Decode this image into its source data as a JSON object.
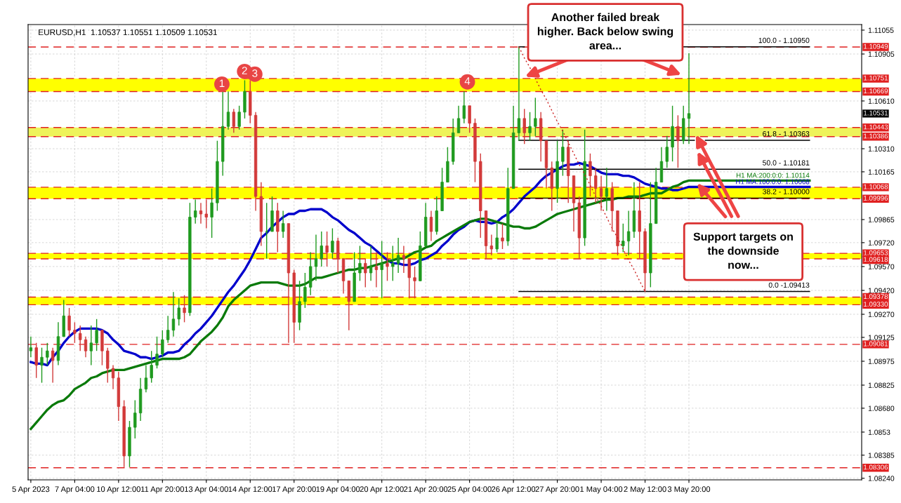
{
  "chart_data": {
    "type": "candlestick",
    "title": "EURUSD,H1  1.10537 1.10551 1.10509 1.10531",
    "categories": [
      "5 Apr 2023",
      null,
      null,
      null,
      null,
      null,
      null,
      null,
      "7 Apr 04:00",
      null,
      null,
      null,
      null,
      null,
      null,
      null,
      "10 Apr 12:00",
      null,
      null,
      null,
      null,
      null,
      null,
      null,
      "11 Apr 20:00",
      null,
      null,
      null,
      null,
      null,
      null,
      null,
      "13 Apr 04:00",
      null,
      null,
      null,
      null,
      null,
      null,
      null,
      "14 Apr 12:00",
      null,
      null,
      null,
      null,
      null,
      null,
      null,
      "17 Apr 20:00",
      null,
      null,
      null,
      null,
      null,
      null,
      null,
      "19 Apr 04:00",
      null,
      null,
      null,
      null,
      null,
      null,
      null,
      "20 Apr 12:00",
      null,
      null,
      null,
      null,
      null,
      null,
      null,
      "21 Apr 20:00",
      null,
      null,
      null,
      null,
      null,
      null,
      null,
      "25 Apr 04:00",
      null,
      null,
      null,
      null,
      null,
      null,
      null,
      "26 Apr 12:00",
      null,
      null,
      null,
      null,
      null,
      null,
      null,
      "27 Apr 20:00",
      null,
      null,
      null,
      null,
      null,
      null,
      null,
      "1 May 04:00",
      null,
      null,
      null,
      null,
      null,
      null,
      null,
      "2 May 12:00",
      null,
      null,
      null,
      null,
      null,
      null,
      null,
      "3 May 20:00",
      null,
      null,
      null,
      null,
      null,
      null,
      null,
      null,
      null,
      null,
      null,
      null,
      null,
      null,
      null,
      null,
      null,
      null,
      null,
      null,
      null,
      null,
      null,
      null,
      null,
      null,
      null,
      null,
      null,
      null,
      null
    ],
    "ohlc": [
      [
        1.0904,
        1.0913,
        1.09,
        1.0906
      ],
      [
        1.0906,
        1.0909,
        1.0887,
        1.0895
      ],
      [
        1.0895,
        1.0906,
        1.0884,
        1.09
      ],
      [
        1.09,
        1.0909,
        1.0895,
        1.0904
      ],
      [
        1.0904,
        1.0906,
        1.0884,
        1.0898
      ],
      [
        1.0898,
        1.0922,
        1.0895,
        1.0913
      ],
      [
        1.0913,
        1.0936,
        1.0913,
        1.0926
      ],
      [
        1.0926,
        1.0931,
        1.0913,
        1.0917
      ],
      [
        1.0917,
        1.0922,
        1.0909,
        1.0915
      ],
      [
        1.0915,
        1.092,
        1.0904,
        1.0911
      ],
      [
        1.0911,
        1.0913,
        1.09,
        1.0904
      ],
      [
        1.0904,
        1.092,
        1.0895,
        1.0909
      ],
      [
        1.0909,
        1.0924,
        1.0904,
        1.0917
      ],
      [
        1.0917,
        1.0917,
        1.0895,
        1.0904
      ],
      [
        1.0904,
        1.0906,
        1.0884,
        1.0893
      ],
      [
        1.0893,
        1.0895,
        1.088,
        1.0887
      ],
      [
        1.0887,
        1.0891,
        1.086,
        1.0869
      ],
      [
        1.0869,
        1.0873,
        1.0831,
        1.0838
      ],
      [
        1.0838,
        1.086,
        1.0831,
        1.0856
      ],
      [
        1.0856,
        1.0873,
        1.0849,
        1.0865
      ],
      [
        1.0865,
        1.0887,
        1.086,
        1.088
      ],
      [
        1.088,
        1.0895,
        1.0878,
        1.0887
      ],
      [
        1.0887,
        1.0904,
        1.0884,
        1.0895
      ],
      [
        1.0895,
        1.0913,
        1.0893,
        1.0902
      ],
      [
        1.0902,
        1.0917,
        1.09,
        1.0911
      ],
      [
        1.0911,
        1.0926,
        1.0909,
        1.0917
      ],
      [
        1.0917,
        1.0941,
        1.0913,
        1.0924
      ],
      [
        1.0924,
        1.0937,
        1.092,
        1.0931
      ],
      [
        1.0931,
        1.0939,
        1.0922,
        1.0928
      ],
      [
        1.0928,
        1.0997,
        1.0926,
        1.0988
      ],
      [
        1.0988,
        1.0999,
        1.0984,
        1.0992
      ],
      [
        1.0992,
        1.0997,
        1.0984,
        1.099
      ],
      [
        1.099,
        1.0999,
        1.0981,
        1.0988
      ],
      [
        1.0988,
        1.1006,
        1.0975,
        1.0997
      ],
      [
        1.0997,
        1.1036,
        1.0992,
        1.1023
      ],
      [
        1.1023,
        1.1067,
        1.1014,
        1.1045
      ],
      [
        1.1045,
        1.1067,
        1.1043,
        1.1054
      ],
      [
        1.1054,
        1.1056,
        1.1041,
        1.1045
      ],
      [
        1.1045,
        1.1058,
        1.1043,
        1.1054
      ],
      [
        1.1054,
        1.1074,
        1.105,
        1.1067
      ],
      [
        1.1067,
        1.1074,
        1.1047,
        1.1052
      ],
      [
        1.1052,
        1.1054,
        1.0992,
        1.1001
      ],
      [
        1.1001,
        1.101,
        1.097,
        1.0979
      ],
      [
        1.0979,
        1.0997,
        1.0962,
        1.0979
      ],
      [
        1.0979,
        1.1001,
        1.0979,
        1.0992
      ],
      [
        1.0992,
        1.0997,
        1.0966,
        1.0979
      ],
      [
        1.0979,
        1.0992,
        1.0975,
        1.0984
      ],
      [
        1.0984,
        1.0984,
        1.0909,
        1.0953
      ],
      [
        1.0953,
        1.0955,
        1.0909,
        1.0922
      ],
      [
        1.0922,
        1.0948,
        1.0917,
        1.0935
      ],
      [
        1.0935,
        1.0953,
        1.0931,
        1.0944
      ],
      [
        1.0944,
        1.0966,
        1.0939,
        1.0957
      ],
      [
        1.0957,
        1.0977,
        1.0948,
        1.0962
      ],
      [
        1.0962,
        1.0979,
        1.0957,
        1.097
      ],
      [
        1.097,
        1.0979,
        1.0957,
        1.0966
      ],
      [
        1.0966,
        1.0981,
        1.0962,
        1.0973
      ],
      [
        1.0973,
        1.0975,
        1.0953,
        1.0962
      ],
      [
        1.0962,
        1.0962,
        1.094,
        1.0948
      ],
      [
        1.0948,
        1.0948,
        1.0917,
        1.0935
      ],
      [
        1.0935,
        1.0966,
        1.0935,
        1.0953
      ],
      [
        1.0953,
        1.097,
        1.0948,
        1.0959
      ],
      [
        1.0959,
        1.0962,
        1.0944,
        1.0953
      ],
      [
        1.0953,
        1.097,
        1.0948,
        1.0957
      ],
      [
        1.0957,
        1.0966,
        1.0944,
        1.0955
      ],
      [
        1.0955,
        1.0973,
        1.0937,
        1.0959
      ],
      [
        1.0959,
        1.0966,
        1.0948,
        1.0957
      ],
      [
        1.0957,
        1.097,
        1.0948,
        1.0959
      ],
      [
        1.0959,
        1.0975,
        1.0953,
        1.0964
      ],
      [
        1.0964,
        1.097,
        1.0953,
        1.0962
      ],
      [
        1.0962,
        1.0962,
        1.0937,
        1.095
      ],
      [
        1.095,
        1.0957,
        1.0937,
        1.0948
      ],
      [
        1.0948,
        1.0979,
        1.0948,
        1.097
      ],
      [
        1.097,
        1.0997,
        1.097,
        1.0988
      ],
      [
        1.0988,
        1.0992,
        1.0973,
        1.0979
      ],
      [
        1.0979,
        1.1001,
        1.0977,
        1.0992
      ],
      [
        1.0992,
        1.1019,
        1.0992,
        1.101
      ],
      [
        1.101,
        1.1032,
        1.101,
        1.1023
      ],
      [
        1.1023,
        1.105,
        1.1021,
        1.1041
      ],
      [
        1.1041,
        1.1058,
        1.1041,
        1.105
      ],
      [
        1.105,
        1.1067,
        1.1047,
        1.1058
      ],
      [
        1.1058,
        1.1058,
        1.1041,
        1.1047
      ],
      [
        1.1047,
        1.105,
        1.101,
        1.1023
      ],
      [
        1.1023,
        1.1028,
        1.0975,
        1.0992
      ],
      [
        1.0992,
        1.0992,
        1.0962,
        1.097
      ],
      [
        1.097,
        1.0977,
        1.0964,
        1.0968
      ],
      [
        1.0968,
        1.0984,
        1.0966,
        1.0975
      ],
      [
        1.0975,
        1.0984,
        1.0968,
        1.0973
      ],
      [
        1.0973,
        1.1019,
        1.097,
        1.1006
      ],
      [
        1.1006,
        1.1058,
        1.1006,
        1.1041
      ],
      [
        1.1041,
        1.1095,
        1.1036,
        1.105
      ],
      [
        1.105,
        1.1056,
        1.1034,
        1.1041
      ],
      [
        1.1041,
        1.1054,
        1.1036,
        1.1045
      ],
      [
        1.1045,
        1.1063,
        1.1039,
        1.105
      ],
      [
        1.105,
        1.1054,
        1.1023,
        1.1036
      ],
      [
        1.1036,
        1.1036,
        1.1006,
        1.1019
      ],
      [
        1.1019,
        1.1023,
        1.0992,
        1.1006
      ],
      [
        1.1006,
        1.1036,
        1.0997,
        1.1023
      ],
      [
        1.1023,
        1.1043,
        1.1014,
        1.1032
      ],
      [
        1.1032,
        1.1036,
        1.0997,
        1.1014
      ],
      [
        1.1014,
        1.1014,
        1.0979,
        1.0997
      ],
      [
        1.0997,
        1.1001,
        1.0962,
        1.0975
      ],
      [
        1.0975,
        1.1043,
        1.097,
        1.1023
      ],
      [
        1.1023,
        1.1028,
        1.1001,
        1.1014
      ],
      [
        1.1014,
        1.1019,
        1.0997,
        1.1006
      ],
      [
        1.1006,
        1.1014,
        1.0992,
        1.1001
      ],
      [
        1.1001,
        1.1019,
        1.0992,
        1.1006
      ],
      [
        1.1006,
        1.101,
        1.0979,
        1.0992
      ],
      [
        1.0992,
        1.0992,
        1.0964,
        1.097
      ],
      [
        1.097,
        1.0984,
        1.0966,
        1.0973
      ],
      [
        1.0973,
        1.0992,
        1.0964,
        1.0979
      ],
      [
        1.0979,
        1.101,
        1.0975,
        1.0992
      ],
      [
        1.0992,
        1.101,
        1.0962,
        1.0979
      ],
      [
        1.0979,
        1.0981,
        1.0941,
        1.0953
      ],
      [
        1.0953,
        1.101,
        1.0944,
        1.0984
      ],
      [
        1.0984,
        1.1019,
        1.0984,
        1.101
      ],
      [
        1.101,
        1.1032,
        1.101,
        1.1023
      ],
      [
        1.1023,
        1.1039,
        1.1019,
        1.1032
      ],
      [
        1.1032,
        1.1058,
        1.1023,
        1.1045
      ],
      [
        1.1045,
        1.1052,
        1.1019,
        1.1036
      ],
      [
        1.1036,
        1.1058,
        1.1034,
        1.105
      ],
      [
        1.105,
        1.1091,
        1.1034,
        1.10531
      ],
      null,
      null,
      null,
      null,
      null,
      null,
      null,
      null,
      null,
      null,
      null,
      null,
      null,
      null,
      null,
      null,
      null,
      null,
      null,
      null,
      null,
      null,
      null,
      null,
      null,
      null,
      null,
      null,
      null,
      null,
      null
    ],
    "series": [
      {
        "type": "line",
        "name": "H1 MA:100:0:0: 1.10068",
        "color": "#0000cc",
        "values": [
          1.0897,
          1.0896,
          1.0896,
          1.0895,
          1.09,
          1.0904,
          1.0909,
          1.0913,
          1.0916,
          1.0918,
          1.0918,
          1.0918,
          1.0918,
          1.0917,
          1.0915,
          1.0911,
          1.0908,
          1.0904,
          1.0903,
          1.0902,
          1.09,
          1.09,
          1.0899,
          1.09,
          1.0901,
          1.0903,
          1.0903,
          1.0904,
          1.0908,
          1.0911,
          1.0915,
          1.0918,
          1.0922,
          1.0926,
          1.0931,
          1.0936,
          1.0941,
          1.0945,
          1.095,
          1.0955,
          1.0961,
          1.0968,
          1.0975,
          1.0978,
          1.0982,
          1.0985,
          1.0988,
          1.099,
          1.099,
          1.0992,
          1.0992,
          1.0993,
          1.0993,
          1.0993,
          1.0991,
          1.0988,
          1.0986,
          1.0983,
          1.098,
          1.0978,
          1.0975,
          1.0972,
          1.097,
          1.0967,
          1.0964,
          1.0961,
          1.0959,
          1.0959,
          1.0958,
          1.0958,
          1.0959,
          1.0961,
          1.0962,
          1.0964,
          1.0966,
          1.097,
          1.0973,
          1.0977,
          1.098,
          1.0982,
          1.0985,
          1.0986,
          1.0985,
          1.0985,
          1.0984,
          1.0985,
          1.0988,
          1.099,
          1.0993,
          1.0997,
          1.1001,
          1.1004,
          1.1007,
          1.1011,
          1.1014,
          1.1016,
          1.1018,
          1.102,
          1.1021,
          1.1021,
          1.1022,
          1.1021,
          1.102,
          1.1018,
          1.1016,
          1.1015,
          1.1015,
          1.1015,
          1.1014,
          1.1014,
          1.1013,
          1.1011,
          1.1009,
          1.1008,
          1.1007,
          1.1006,
          1.1006,
          1.1005,
          1.1005,
          1.1006,
          1.1007,
          1.1007,
          1.1007,
          1.1007,
          1.1007,
          1.1007,
          1.1007,
          1.1007,
          1.1007,
          1.1007,
          1.1007,
          1.1007,
          1.1007,
          1.1007,
          1.1007,
          1.1007,
          1.1007,
          1.1007,
          1.1007,
          1.1007,
          1.1007,
          1.1007,
          1.1007,
          null,
          null,
          null,
          null,
          null,
          null,
          null,
          null,
          null
        ]
      },
      {
        "type": "line",
        "name": "H1 MA:200:0:0: 1.10114",
        "color": "#0a7a0a",
        "values": [
          1.0855,
          1.0859,
          1.0863,
          1.0867,
          1.087,
          1.0872,
          1.0873,
          1.0876,
          1.088,
          1.0882,
          1.0884,
          1.0887,
          1.0888,
          1.089,
          1.0891,
          1.0892,
          1.0892,
          1.0892,
          1.0893,
          1.0894,
          1.0895,
          1.0896,
          1.0897,
          1.0898,
          1.0899,
          1.0899,
          1.0899,
          1.0899,
          1.09,
          1.0902,
          1.0906,
          1.091,
          1.0913,
          1.0916,
          1.092,
          1.0925,
          1.0932,
          1.0936,
          1.0939,
          1.0942,
          1.0945,
          1.0946,
          1.0947,
          1.0947,
          1.0947,
          1.0947,
          1.0946,
          1.0945,
          1.0945,
          1.0945,
          1.0946,
          1.0948,
          1.095,
          1.095,
          1.0951,
          1.0952,
          1.0953,
          1.0954,
          1.0955,
          1.0955,
          1.0956,
          1.0956,
          1.0957,
          1.0958,
          1.0959,
          1.096,
          1.0961,
          1.0962,
          1.0962,
          1.0964,
          1.0966,
          1.0967,
          1.0969,
          1.097,
          1.0973,
          1.0975,
          1.0977,
          1.0979,
          1.0981,
          1.0983,
          1.0985,
          1.0986,
          1.0987,
          1.0987,
          1.0986,
          1.0985,
          1.0984,
          1.0983,
          1.0982,
          1.0982,
          1.0981,
          1.0981,
          1.0982,
          1.0984,
          1.0986,
          1.0988,
          1.099,
          1.0991,
          1.0992,
          1.0993,
          1.0994,
          1.0995,
          1.0996,
          1.0997,
          1.0998,
          1.0999,
          1.0999,
          1.1,
          1.1,
          1.1001,
          1.1001,
          1.1001,
          1.1002,
          1.1003,
          1.1003,
          1.1003,
          1.1005,
          1.1007,
          1.1008,
          1.101,
          1.1011,
          1.1011,
          1.1011,
          1.1011,
          1.1011,
          1.1011,
          1.1011,
          1.1011,
          1.1011,
          1.1011,
          1.1011,
          1.1011,
          1.1011,
          1.1011,
          1.1011,
          1.1011,
          1.1011,
          1.1011,
          1.1011,
          1.1011,
          1.1011,
          1.1011,
          1.1011,
          null,
          null,
          null,
          null,
          null,
          null,
          null,
          null,
          null
        ]
      },
      {
        "type": "line",
        "name": "100.0 - 1.10950",
        "color": "#000000",
        "line_style": "solid",
        "values": [
          null,
          null,
          null,
          null,
          null,
          null,
          null,
          null,
          null,
          null,
          null,
          null,
          null,
          null,
          null,
          null,
          null,
          null,
          null,
          null,
          null,
          null,
          null,
          null,
          null,
          null,
          null,
          null,
          null,
          null,
          null,
          null,
          null,
          null,
          null,
          null,
          null,
          null,
          null,
          null,
          null,
          null,
          null,
          null,
          null,
          null,
          null,
          null,
          null,
          null,
          null,
          null,
          null,
          null,
          null,
          null,
          null,
          null,
          null,
          null,
          null,
          null,
          null,
          null,
          null,
          null,
          null,
          null,
          null,
          null,
          null,
          null,
          null,
          null,
          null,
          null,
          null,
          null,
          null,
          null,
          null,
          null,
          null,
          null,
          null,
          null,
          null,
          null,
          null,
          1.1095,
          1.1095,
          null,
          null,
          null,
          null,
          null,
          null,
          null,
          null,
          null,
          null,
          null,
          null,
          null,
          null,
          null,
          null,
          null,
          null,
          null,
          null,
          null,
          null,
          null,
          null,
          null,
          null,
          null,
          null,
          1.1095,
          1.1095,
          1.1095,
          1.1095,
          1.1095,
          1.1095,
          1.1095,
          1.1095,
          1.1095,
          1.1095,
          1.1095,
          1.1095,
          1.1095,
          1.1095,
          1.1095,
          1.1095,
          1.1095,
          1.1095,
          1.1095,
          1.1095,
          1.1095,
          1.1095,
          1.1095,
          1.1095,
          null,
          null,
          null,
          null,
          null,
          null,
          null,
          null,
          null
        ]
      },
      {
        "type": "line",
        "name": "61.8 - 1.10363",
        "color": "#000000",
        "line_style": "solid",
        "values": [
          null,
          null,
          null,
          null,
          null,
          null,
          null,
          null,
          null,
          null,
          null,
          null,
          null,
          null,
          null,
          null,
          null,
          null,
          null,
          null,
          null,
          null,
          null,
          null,
          null,
          null,
          null,
          null,
          null,
          null,
          null,
          null,
          null,
          null,
          null,
          null,
          null,
          null,
          null,
          null,
          null,
          null,
          null,
          null,
          null,
          null,
          null,
          null,
          null,
          null,
          null,
          null,
          null,
          null,
          null,
          null,
          null,
          null,
          null,
          null,
          null,
          null,
          null,
          null,
          null,
          null,
          null,
          null,
          null,
          null,
          null,
          null,
          null,
          null,
          null,
          null,
          null,
          null,
          null,
          null,
          null,
          null,
          null,
          null,
          null,
          null,
          null,
          null,
          null,
          1.10363,
          1.10363,
          1.10363,
          1.10363,
          1.10363,
          1.10363,
          1.10363,
          1.10363,
          1.10363,
          1.10363,
          1.10363,
          1.10363,
          1.10363,
          1.10363,
          1.10363,
          1.10363,
          1.10363,
          1.10363,
          1.10363,
          1.10363,
          1.10363,
          1.10363,
          1.10363,
          1.10363,
          1.10363,
          1.10363,
          1.10363,
          1.10363,
          1.10363,
          1.10363,
          1.10363,
          1.10363,
          1.10363,
          null,
          1.10363,
          1.10363,
          1.10363,
          1.10363,
          1.10363,
          1.10363,
          1.10363,
          1.10363,
          1.10363,
          1.10363,
          1.10363,
          1.10363,
          1.10363,
          1.10363,
          1.10363,
          1.10363,
          1.10363,
          1.10363,
          1.10363,
          1.10363,
          null,
          null,
          null,
          null,
          null,
          null,
          null,
          null,
          null
        ]
      },
      {
        "type": "line",
        "name": "50.0 - 1.10181",
        "color": "#000000",
        "line_style": "solid",
        "values": [
          null,
          null,
          null,
          null,
          null,
          null,
          null,
          null,
          null,
          null,
          null,
          null,
          null,
          null,
          null,
          null,
          null,
          null,
          null,
          null,
          null,
          null,
          null,
          null,
          null,
          null,
          null,
          null,
          null,
          null,
          null,
          null,
          null,
          null,
          null,
          null,
          null,
          null,
          null,
          null,
          null,
          null,
          null,
          null,
          null,
          null,
          null,
          null,
          null,
          null,
          null,
          null,
          null,
          null,
          null,
          null,
          null,
          null,
          null,
          null,
          null,
          null,
          null,
          null,
          null,
          null,
          null,
          null,
          null,
          null,
          null,
          null,
          null,
          null,
          null,
          null,
          null,
          null,
          null,
          null,
          null,
          null,
          null,
          null,
          null,
          null,
          null,
          null,
          null,
          1.10181,
          1.10181,
          1.10181,
          1.10181,
          1.10181,
          1.10181,
          1.10181,
          1.10181,
          1.10181,
          1.10181,
          1.10181,
          1.10181,
          1.10181,
          1.10181,
          1.10181,
          1.10181,
          1.10181,
          1.10181,
          1.10181,
          1.10181,
          1.10181,
          1.10181,
          1.10181,
          1.10181,
          1.10181,
          1.10181,
          1.10181,
          1.10181,
          1.10181,
          1.10181,
          1.10181,
          1.10181,
          1.10181,
          1.10181,
          1.10181,
          1.10181,
          1.10181,
          1.10181,
          1.10181,
          1.10181,
          1.10181,
          1.10181,
          1.10181,
          1.10181,
          1.10181,
          1.10181,
          1.10181,
          1.10181,
          1.10181,
          1.10181,
          1.10181,
          1.10181,
          1.10181,
          1.10181,
          null,
          null,
          null,
          null,
          null,
          null,
          null,
          null,
          null
        ]
      },
      {
        "type": "line",
        "name": "38.2 - 1.10000",
        "color": "#000000",
        "line_style": "solid",
        "values": [
          null,
          null,
          null,
          null,
          null,
          null,
          null,
          null,
          null,
          null,
          null,
          null,
          null,
          null,
          null,
          null,
          null,
          null,
          null,
          null,
          null,
          null,
          null,
          null,
          null,
          null,
          null,
          null,
          null,
          null,
          null,
          null,
          null,
          null,
          null,
          null,
          null,
          null,
          null,
          null,
          null,
          null,
          null,
          null,
          null,
          null,
          null,
          null,
          null,
          null,
          null,
          null,
          null,
          null,
          null,
          null,
          null,
          null,
          null,
          null,
          null,
          null,
          null,
          null,
          null,
          null,
          null,
          null,
          null,
          null,
          null,
          null,
          null,
          null,
          null,
          null,
          null,
          null,
          null,
          null,
          null,
          null,
          null,
          null,
          null,
          null,
          null,
          null,
          null,
          1.1,
          1.1,
          1.1,
          1.1,
          1.1,
          1.1,
          1.1,
          1.1,
          1.1,
          1.1,
          1.1,
          1.1,
          1.1,
          1.1,
          1.1,
          1.1,
          1.1,
          1.1,
          1.1,
          1.1,
          1.1,
          1.1,
          1.1,
          1.1,
          1.1,
          1.1,
          1.1,
          1.1,
          1.1,
          1.1,
          1.1,
          1.1,
          1.1,
          1.1,
          1.1,
          1.1,
          1.1,
          1.1,
          1.1,
          1.1,
          1.1,
          1.1,
          1.1,
          1.1,
          1.1,
          1.1,
          1.1,
          1.1,
          1.1,
          1.1,
          1.1,
          1.1,
          1.1,
          1.1,
          null,
          null,
          null,
          null,
          null,
          null,
          null,
          null,
          null
        ]
      },
      {
        "type": "line",
        "name": "0.0 -1.09413",
        "color": "#000000",
        "line_style": "solid",
        "values": [
          null,
          null,
          null,
          null,
          null,
          null,
          null,
          null,
          null,
          null,
          null,
          null,
          null,
          null,
          null,
          null,
          null,
          null,
          null,
          null,
          null,
          null,
          null,
          null,
          null,
          null,
          null,
          null,
          null,
          null,
          null,
          null,
          null,
          null,
          null,
          null,
          null,
          null,
          null,
          null,
          null,
          null,
          null,
          null,
          null,
          null,
          null,
          null,
          null,
          null,
          null,
          null,
          null,
          null,
          null,
          null,
          null,
          null,
          null,
          null,
          null,
          null,
          null,
          null,
          null,
          null,
          null,
          null,
          null,
          null,
          null,
          null,
          null,
          null,
          null,
          null,
          null,
          null,
          null,
          null,
          null,
          null,
          null,
          null,
          null,
          null,
          null,
          null,
          null,
          1.09413,
          1.09413,
          1.09413,
          1.09413,
          1.09413,
          1.09413,
          1.09413,
          1.09413,
          1.09413,
          1.09413,
          1.09413,
          1.09413,
          1.09413,
          1.09413,
          1.09413,
          1.09413,
          1.09413,
          1.09413,
          1.09413,
          1.09413,
          1.09413,
          1.09413,
          1.09413,
          1.09413,
          1.09413,
          1.09413,
          1.09413,
          1.09413,
          1.09413,
          1.09413,
          1.09413,
          1.09413,
          1.09413,
          1.09413,
          1.09413,
          1.09413,
          1.09413,
          1.09413,
          1.09413,
          1.09413,
          1.09413,
          1.09413,
          1.09413,
          1.09413,
          1.09413,
          1.09413,
          1.09413,
          1.09413,
          1.09413,
          1.09413,
          1.09413,
          1.09413,
          1.09413,
          1.09413,
          null,
          null,
          null,
          null,
          null,
          null,
          null,
          null,
          null
        ]
      },
      {
        "type": "line",
        "color": "#cc2222",
        "line_style": "dotted",
        "values": [
          null,
          null,
          null,
          null,
          null,
          null,
          null,
          null,
          null,
          null,
          null,
          null,
          null,
          null,
          null,
          null,
          null,
          null,
          null,
          null,
          null,
          null,
          null,
          null,
          null,
          null,
          null,
          null,
          null,
          null,
          null,
          null,
          null,
          null,
          null,
          null,
          null,
          null,
          null,
          null,
          null,
          null,
          null,
          null,
          null,
          null,
          null,
          null,
          null,
          null,
          null,
          null,
          null,
          null,
          null,
          null,
          null,
          null,
          null,
          null,
          null,
          null,
          null,
          null,
          null,
          null,
          null,
          null,
          null,
          null,
          null,
          null,
          null,
          null,
          null,
          null,
          null,
          null,
          null,
          null,
          null,
          null,
          null,
          null,
          null,
          null,
          null,
          null,
          null,
          1.1095,
          1.1088,
          1.1082,
          1.1075,
          1.1068,
          1.1062,
          1.1055,
          1.1048,
          1.1042,
          1.1035,
          1.1028,
          1.1021,
          1.1015,
          1.1008,
          1.1001,
          1.0995,
          1.0988,
          1.0981,
          1.0975,
          1.0968,
          1.0961,
          1.0955,
          1.0948,
          1.09413,
          null,
          null,
          null,
          null,
          null,
          null,
          null,
          null,
          null,
          null,
          null,
          null,
          null,
          null,
          null,
          null,
          null,
          null,
          null,
          null,
          null,
          null,
          null,
          null,
          null,
          null,
          null,
          null,
          null,
          null,
          null,
          null,
          null,
          null,
          null,
          null,
          null,
          null,
          null
        ]
      }
    ],
    "ylim": [
      1.0823,
      1.1109
    ],
    "yticks": [
      1.11055,
      1.10905,
      {
        "value": 1.1061,
        "label": "1.10610"
      },
      {
        "value": 1.1031,
        "label": "1.10310"
      },
      1.10165,
      1.09865,
      {
        "value": 1.0972,
        "label": "1.09720"
      },
      {
        "value": 1.0957,
        "label": "1.09570"
      },
      {
        "value": 1.0942,
        "label": "1.09420"
      },
      {
        "value": 1.0927,
        "label": "1.09270"
      },
      1.09125,
      1.08975,
      1.08825,
      {
        "value": 1.0868,
        "label": "1.08680"
      },
      1.0853,
      1.08385,
      {
        "value": 1.0824,
        "label": "1.08240"
      }
    ],
    "bands": [
      {
        "axis": "y",
        "from": 1.10669,
        "to": 1.10751,
        "color": "#ffff00"
      },
      {
        "axis": "y",
        "from": 1.10386,
        "to": 1.10443,
        "color": "#eef35a"
      },
      {
        "axis": "y",
        "from": 1.09996,
        "to": 1.10068,
        "color": "#ffff00"
      },
      {
        "axis": "y",
        "from": 1.09618,
        "to": 1.09653,
        "color": "#ffff00"
      },
      {
        "axis": "y",
        "from": 1.0933,
        "to": 1.09378,
        "color": "#ffff00"
      }
    ],
    "ref_lines": [
      {
        "axis": "y",
        "value": 1.10949,
        "label": "1.10949",
        "color": "#e02020",
        "line_style": "dashed"
      },
      {
        "axis": "y",
        "value": 1.10751,
        "label": "1.10751",
        "color": "#e02020",
        "line_style": "dashed"
      },
      {
        "axis": "y",
        "value": 1.10669,
        "label": "1.10669",
        "color": "#e02020",
        "line_style": "dashed"
      },
      {
        "axis": "y",
        "value": 1.10443,
        "label": "1.10443",
        "color": "#e02020",
        "line_style": "dashed"
      },
      {
        "axis": "y",
        "value": 1.10386,
        "label": "1.10386",
        "color": "#e02020",
        "line_style": "dashed"
      },
      {
        "axis": "y",
        "value": 1.10068,
        "label": "1.10068",
        "color": "#e02020",
        "line_style": "dashed"
      },
      {
        "axis": "y",
        "value": 1.09996,
        "label": "1.09996",
        "color": "#e02020",
        "line_style": "dashed"
      },
      {
        "axis": "y",
        "value": 1.09653,
        "label": "1.09653",
        "color": "#e02020",
        "line_style": "dashed"
      },
      {
        "axis": "y",
        "value": 1.09618,
        "label": "1.09618",
        "color": "#e02020",
        "line_style": "dashed"
      },
      {
        "axis": "y",
        "value": 1.09378,
        "label": "1.09378",
        "color": "#e02020",
        "line_style": "dashed"
      },
      {
        "axis": "y",
        "value": 1.0933,
        "label": "1.09330",
        "color": "#e02020",
        "line_style": "dashed"
      },
      {
        "axis": "y",
        "value": 1.09081,
        "label": "1.09081",
        "color": "#e02020",
        "line_style": "dashed"
      },
      {
        "axis": "y",
        "value": 1.08306,
        "label": "1.08306",
        "color": "#e02020",
        "line_style": "dashed"
      }
    ],
    "annotations": [
      "Another failed break\nhigher. Back below swing\narea...",
      "Support targets on\nthe downside\nnow...",
      "1",
      "2",
      "3",
      "4",
      "1.10531"
    ],
    "grid": true
  }
}
